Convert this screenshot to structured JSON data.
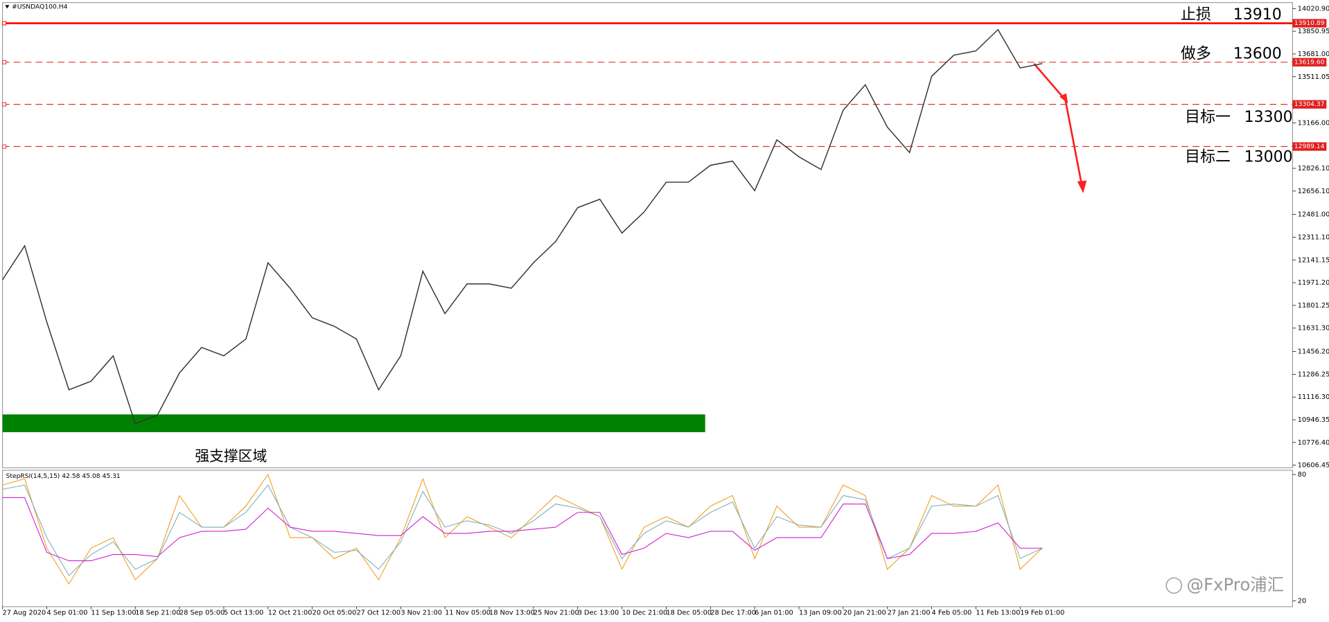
{
  "chart_data": [
    {
      "type": "line",
      "title": "#USNDAQ100.H4",
      "categories": [
        "27 Aug 2020",
        null,
        "4 Sep 01:00",
        null,
        "11 Sep 13:00",
        null,
        "18 Sep 21:00",
        null,
        "28 Sep 05:00",
        null,
        "5 Oct 13:00",
        null,
        "12 Oct 21:00",
        null,
        "20 Oct 05:00",
        null,
        "27 Oct 12:00",
        null,
        "3 Nov 21:00",
        null,
        "11 Nov 05:00",
        null,
        "18 Nov 13:00",
        null,
        "25 Nov 21:00",
        null,
        "3 Dec 13:00",
        null,
        "10 Dec 21:00",
        null,
        "18 Dec 05:00",
        null,
        "28 Dec 17:00",
        null,
        "6 Jan 01:00",
        null,
        "13 Jan 09:00",
        null,
        "20 Jan 21:00",
        null,
        "27 Jan 21:00",
        null,
        "4 Feb 05:00",
        null,
        "11 Feb 13:00",
        null,
        "19 Feb 01:00",
        null
      ],
      "series": [
        {
          "color": "#333333",
          "values": [
            11993,
            12247,
            11677,
            11170,
            11234,
            11424,
            10917,
            10980,
            11297,
            11487,
            11424,
            11550,
            12120,
            11930,
            11709,
            11645,
            11550,
            11170,
            11424,
            12057,
            11740,
            11962,
            11962,
            11930,
            12120,
            12278,
            12532,
            12595,
            12342,
            12500,
            12722,
            12722,
            12849,
            12880,
            12659,
            13039,
            12912,
            12817,
            13261,
            13451,
            13134,
            12944,
            13514,
            13672,
            13704,
            13863,
            13577,
            13609
          ]
        }
      ],
      "ylim": [
        10606.45,
        14020.9
      ],
      "yticks": [
        {
          "value": 14020.9,
          "label": "14020.90"
        },
        {
          "value": 13850.95,
          "label": "13850.95"
        },
        {
          "value": 13681,
          "label": "13681.00"
        },
        {
          "value": 13511.05,
          "label": "13511.05"
        },
        {
          "value": 13166,
          "label": "13166.00"
        },
        {
          "value": 12826.1,
          "label": "12826.10"
        },
        {
          "value": 12656.1,
          "label": "12656.10"
        },
        {
          "value": 12481,
          "label": "12481.00"
        },
        {
          "value": 12311.1,
          "label": "12311.10"
        },
        {
          "value": 12141.15,
          "label": "12141.15"
        },
        {
          "value": 11971.2,
          "label": "11971.20"
        },
        {
          "value": 11801.25,
          "label": "11801.25"
        },
        {
          "value": 11631.3,
          "label": "11631.30"
        },
        {
          "value": 11456.2,
          "label": "11456.20"
        },
        {
          "value": 11286.25,
          "label": "11286.25"
        },
        {
          "value": 11116.3,
          "label": "11116.30"
        },
        {
          "value": 10946.35,
          "label": "10946.35"
        },
        {
          "value": 10776.4,
          "label": "10776.40"
        },
        {
          "value": 10606.45,
          "label": "10606.45"
        }
      ],
      "levels": [
        {
          "value": 13910.89,
          "label": "13910.89",
          "style": "solid",
          "color": "#ff0000"
        },
        {
          "value": 13619.6,
          "label": "13619.60",
          "style": "dashed",
          "color": "#e03030"
        },
        {
          "value": 13304.37,
          "label": "13304.37",
          "style": "dashed",
          "color": "#e03030"
        },
        {
          "value": 12989.14,
          "label": "12989.14",
          "style": "dashed",
          "color": "#e03030"
        }
      ],
      "zone": {
        "range": [
          10853.5,
          10986
        ],
        "color": "#008000"
      },
      "annotations": [
        "止损",
        "13910",
        "做多",
        "13600",
        "目标一",
        "13300",
        "目标二",
        "13000",
        "强支撑区域"
      ],
      "watermark": "@FxPro浦汇"
    },
    {
      "type": "line",
      "title": "StepRSI(14,5,15) 42.58 45.08 45.31",
      "series": [
        {
          "color": "#f0a020",
          "values": [
            75,
            78,
            45,
            28,
            45,
            50,
            30,
            40,
            70,
            55,
            55,
            65,
            80,
            50,
            50,
            40,
            45,
            30,
            50,
            78,
            50,
            60,
            55,
            50,
            60,
            70,
            65,
            60,
            35,
            55,
            60,
            55,
            65,
            70,
            40,
            65,
            55,
            55,
            75,
            70,
            35,
            45,
            70,
            65,
            65,
            75,
            35,
            45
          ]
        },
        {
          "color": "#80b0c0",
          "values": [
            73,
            75,
            50,
            32,
            42,
            48,
            35,
            40,
            62,
            55,
            55,
            62,
            75,
            55,
            50,
            43,
            44,
            35,
            48,
            72,
            55,
            58,
            56,
            52,
            58,
            66,
            64,
            60,
            40,
            52,
            58,
            55,
            62,
            67,
            45,
            60,
            56,
            55,
            70,
            68,
            40,
            45,
            65,
            66,
            65,
            70,
            40,
            45
          ]
        },
        {
          "color": "#d020d0",
          "values": [
            69,
            69,
            43,
            39,
            39,
            42,
            42,
            41,
            50,
            53,
            53,
            54,
            64,
            55,
            53,
            53,
            52,
            51,
            51,
            60,
            52,
            52,
            53,
            53,
            54,
            55,
            62,
            62,
            42,
            45,
            52,
            50,
            53,
            53,
            44,
            50,
            50,
            50,
            66,
            66,
            40,
            42,
            52,
            52,
            53,
            57,
            45,
            45
          ]
        }
      ],
      "ylim": [
        20,
        80
      ],
      "yticks": [
        20,
        80
      ]
    }
  ]
}
